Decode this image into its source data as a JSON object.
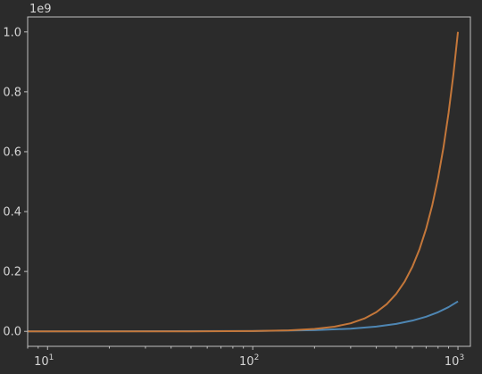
{
  "chart_data": {
    "type": "line",
    "title": "",
    "xlabel": "",
    "ylabel": "",
    "x_scale": "log",
    "xlim": [
      8,
      1150
    ],
    "ylim": [
      -0.05,
      1.05
    ],
    "y_offset_label": "1e9",
    "x_ticks": [
      {
        "value": 10,
        "base": "10",
        "exp": "1"
      },
      {
        "value": 100,
        "base": "10",
        "exp": "2"
      },
      {
        "value": 1000,
        "base": "10",
        "exp": "3"
      }
    ],
    "y_ticks": [
      {
        "value": 0.0,
        "label": "0.0"
      },
      {
        "value": 0.2,
        "label": "0.2"
      },
      {
        "value": 0.4,
        "label": "0.4"
      },
      {
        "value": 0.6,
        "label": "0.6"
      },
      {
        "value": 0.8,
        "label": "0.8"
      },
      {
        "value": 1.0,
        "label": "1.0"
      }
    ],
    "grid": false,
    "series": [
      {
        "color": "#4e86b3",
        "x": [
          1,
          10,
          100,
          200,
          300,
          400,
          500,
          600,
          700,
          800,
          900,
          1000
        ],
        "y": [
          1e-09,
          1e-06,
          0.001,
          0.004,
          0.009,
          0.016,
          0.025,
          0.036,
          0.049,
          0.064,
          0.081,
          0.1
        ]
      },
      {
        "color": "#c4773a",
        "x": [
          1,
          10,
          50,
          100,
          150,
          200,
          250,
          300,
          350,
          400,
          450,
          500,
          550,
          600,
          650,
          700,
          750,
          800,
          850,
          900,
          950,
          1000
        ],
        "y": [
          1e-09,
          1e-06,
          0.000125,
          0.001,
          0.003375,
          0.008,
          0.015625,
          0.027,
          0.042875,
          0.064,
          0.091125,
          0.125,
          0.166375,
          0.216,
          0.274625,
          0.343,
          0.421875,
          0.512,
          0.614125,
          0.729,
          0.857375,
          1.0
        ]
      }
    ]
  }
}
